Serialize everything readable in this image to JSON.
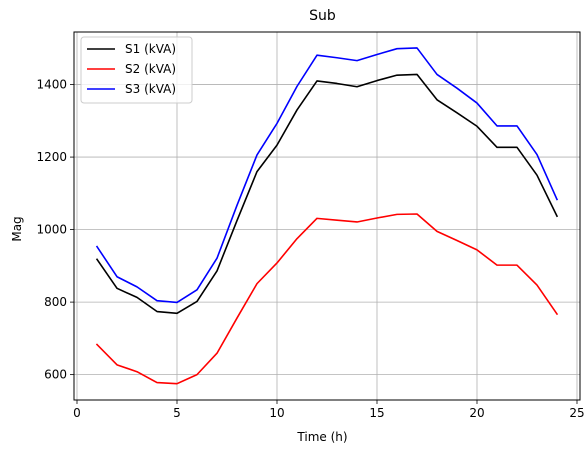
{
  "chart_data": {
    "type": "line",
    "title": "Sub",
    "xlabel": "Time (h)",
    "ylabel": "Mag",
    "xlim": [
      -0.15,
      25.15
    ],
    "ylim": [
      530,
      1545
    ],
    "xticks": [
      0,
      5,
      10,
      15,
      20,
      25
    ],
    "yticks": [
      600,
      800,
      1000,
      1200,
      1400
    ],
    "grid": true,
    "legend_position": "top-left",
    "x": [
      1,
      2,
      3,
      4,
      5,
      6,
      7,
      8,
      9,
      10,
      11,
      12,
      13,
      14,
      15,
      16,
      17,
      18,
      19,
      20,
      21,
      22,
      23,
      24
    ],
    "series": [
      {
        "name": "S1 (kVA)",
        "color": "#000000",
        "values": [
          918,
          838,
          813,
          774,
          769,
          802,
          886,
          1025,
          1160,
          1233,
          1330,
          1410,
          1403,
          1394,
          1411,
          1426,
          1428,
          1358,
          1322,
          1285,
          1227,
          1227,
          1150,
          1037
        ]
      },
      {
        "name": "S2 (kVA)",
        "color": "#ff0000",
        "values": [
          683,
          627,
          608,
          578,
          575,
          600,
          659,
          756,
          851,
          908,
          975,
          1031,
          1026,
          1021,
          1032,
          1042,
          1043,
          995,
          970,
          944,
          902,
          902,
          847,
          767
        ]
      },
      {
        "name": "S3 (kVA)",
        "color": "#0000ff",
        "values": [
          953,
          870,
          842,
          804,
          799,
          834,
          921,
          1067,
          1206,
          1293,
          1395,
          1481,
          1474,
          1466,
          1483,
          1499,
          1501,
          1428,
          1390,
          1349,
          1286,
          1286,
          1207,
          1083
        ]
      }
    ]
  }
}
